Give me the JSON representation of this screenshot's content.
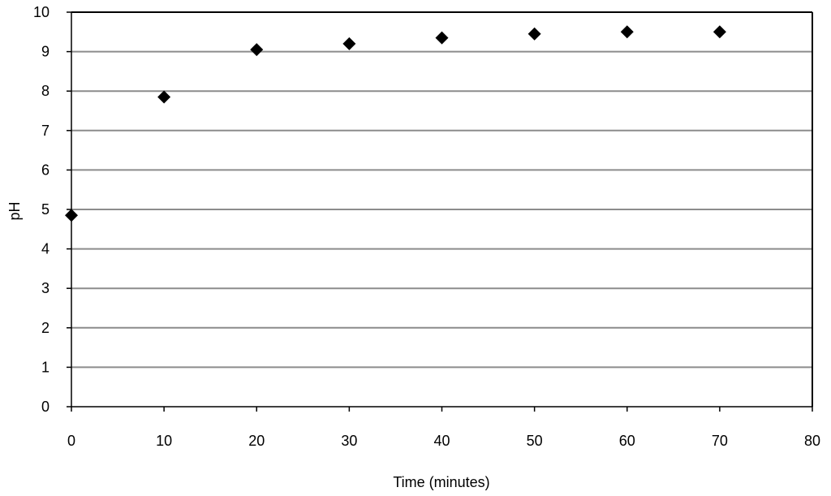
{
  "chart_data": {
    "type": "scatter",
    "title": "",
    "xlabel": "Time (minutes)",
    "ylabel": "pH",
    "xlim": [
      0,
      80
    ],
    "ylim": [
      0,
      10
    ],
    "xticks": [
      0,
      10,
      20,
      30,
      40,
      50,
      60,
      70,
      80
    ],
    "yticks": [
      0,
      1,
      2,
      3,
      4,
      5,
      6,
      7,
      8,
      9,
      10
    ],
    "grid": {
      "horizontal": true,
      "vertical": false
    },
    "legend": "none",
    "series": [
      {
        "marker": "diamond",
        "color": "#000000",
        "points": [
          {
            "x": 0,
            "y": 4.85
          },
          {
            "x": 10,
            "y": 7.85
          },
          {
            "x": 20,
            "y": 9.05
          },
          {
            "x": 30,
            "y": 9.2
          },
          {
            "x": 40,
            "y": 9.35
          },
          {
            "x": 50,
            "y": 9.45
          },
          {
            "x": 60,
            "y": 9.5
          },
          {
            "x": 70,
            "y": 9.5
          }
        ]
      }
    ],
    "colors": {
      "grid": "#8c8c8c",
      "axis": "#000000",
      "frame": "#000000",
      "marker": "#000000"
    }
  }
}
